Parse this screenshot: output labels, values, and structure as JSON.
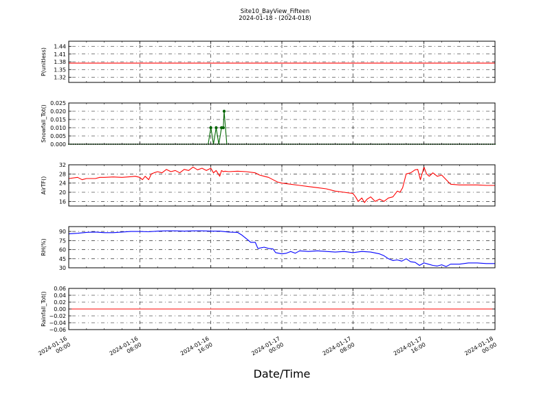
{
  "title": "Site10_BayView_Fifteen",
  "subtitle": "2024-01-18 - (2024-018)",
  "xlabel": "Date/Time",
  "x_ticks": [
    {
      "pos": 0,
      "line1": "2024-01-16",
      "line2": "00:00"
    },
    {
      "pos": 8,
      "line1": "2024-01-16",
      "line2": "08:00"
    },
    {
      "pos": 16,
      "line1": "2024-01-16",
      "line2": "16:00"
    },
    {
      "pos": 24,
      "line1": "2024-01-17",
      "line2": "00:00"
    },
    {
      "pos": 32,
      "line1": "2024-01-17",
      "line2": "08:00"
    },
    {
      "pos": 40,
      "line1": "2024-01-17",
      "line2": "16:00"
    },
    {
      "pos": 48,
      "line1": "2024-01-18",
      "line2": "00:00"
    }
  ],
  "colors": {
    "pressure": "#ff0000",
    "snowfall": "#006400",
    "airtf": "#ff0000",
    "rh": "#0000ff",
    "rainfall": "#ff0000",
    "grid": "#000000"
  },
  "chart_data": [
    {
      "type": "line",
      "ylabel": "P(unitless)",
      "ylim": [
        1.3,
        1.46
      ],
      "yticks": [
        "1.44",
        "1.41",
        "1.38",
        "1.35",
        "1.32"
      ],
      "ytick_values": [
        1.44,
        1.41,
        1.38,
        1.35,
        1.32
      ],
      "grid": true,
      "series": [
        {
          "x": [
            0,
            48
          ],
          "y": [
            1.375,
            1.375
          ]
        }
      ]
    },
    {
      "type": "line",
      "ylabel": "Snowfall_Tot()",
      "ylim": [
        0.0,
        0.025
      ],
      "yticks": [
        "0.025",
        "0.020",
        "0.015",
        "0.010",
        "0.005",
        "0.000"
      ],
      "ytick_values": [
        0.025,
        0.02,
        0.015,
        0.01,
        0.005,
        0.0
      ],
      "grid": true,
      "markers": true,
      "series": [
        {
          "x": [
            0,
            15.7,
            16.0,
            16.3,
            16.6,
            16.9,
            17.2,
            17.4,
            17.5,
            17.8,
            48
          ],
          "y": [
            0.0,
            0.0,
            0.01,
            0.0,
            0.01,
            0.0,
            0.01,
            0.01,
            0.02,
            0.0,
            0.0
          ]
        }
      ]
    },
    {
      "type": "line",
      "ylabel": "AirTF()",
      "ylim": [
        14,
        32
      ],
      "yticks": [
        "32",
        "28",
        "24",
        "20",
        "16"
      ],
      "ytick_values": [
        32,
        28,
        24,
        20,
        16
      ],
      "grid": true,
      "series": [
        {
          "x": [
            0,
            1,
            1.5,
            2,
            3,
            3.5,
            4,
            5,
            6,
            7,
            7.5,
            8,
            8.3,
            8.6,
            9,
            9.3,
            9.6,
            10,
            10.5,
            11,
            11.5,
            12,
            12.5,
            13,
            13.5,
            14,
            14.5,
            15,
            15.5,
            16,
            16.3,
            16.6,
            17,
            17.2,
            17.4,
            17.6,
            18,
            19,
            20,
            21,
            21.5,
            22,
            22.5,
            23,
            23.5,
            24,
            25,
            26,
            27,
            28,
            29,
            30,
            31,
            32,
            32.3,
            32.6,
            33,
            33.3,
            33.6,
            34,
            34.5,
            35,
            35.5,
            36,
            36.5,
            37,
            37.3,
            37.6,
            38,
            38.5,
            39,
            39.3,
            39.6,
            40,
            40.3,
            40.6,
            41,
            41.5,
            42,
            42.5,
            43,
            44,
            45,
            46,
            47,
            48
          ],
          "y": [
            26,
            26.5,
            25.5,
            26,
            26,
            26.5,
            26.5,
            26.7,
            26.5,
            26.8,
            27,
            26.5,
            25.5,
            27,
            25.5,
            28,
            28.5,
            29,
            28.5,
            30,
            29,
            29.5,
            28.5,
            30,
            29.5,
            31,
            29.8,
            30.5,
            29.5,
            30.5,
            28.5,
            29.5,
            27,
            29.5,
            29,
            29.2,
            29,
            29.2,
            29,
            28.5,
            27.5,
            27,
            26.5,
            25.5,
            24.5,
            24,
            23.5,
            23,
            22.5,
            22,
            21.5,
            20.5,
            20,
            19.5,
            18,
            16,
            17.5,
            15.5,
            17,
            18,
            16,
            17,
            16,
            17.5,
            18,
            20.5,
            20,
            22,
            28,
            28.5,
            29.8,
            30,
            25.5,
            31,
            28,
            27,
            28.5,
            27,
            27.5,
            25.5,
            23.5,
            23.2,
            23.2,
            23.2,
            23,
            23
          ]
        }
      ]
    },
    {
      "type": "line",
      "ylabel": "RH(%)",
      "ylim": [
        30,
        98
      ],
      "yticks": [
        "90",
        "75",
        "60",
        "45",
        "30"
      ],
      "ytick_values": [
        90,
        75,
        60,
        45,
        30
      ],
      "grid": true,
      "series": [
        {
          "x": [
            0,
            1,
            2,
            3,
            4,
            5,
            6,
            7,
            8,
            9,
            10,
            11,
            12,
            13,
            14,
            15,
            16,
            17,
            18,
            19,
            19.5,
            20,
            20.5,
            21,
            21.3,
            22,
            22.5,
            23,
            23.3,
            24,
            24.5,
            25,
            25.5,
            26,
            27,
            28,
            29,
            30,
            31,
            32,
            33,
            34,
            35,
            35.5,
            36,
            36.5,
            37,
            37.5,
            38,
            38.5,
            39,
            39.5,
            40,
            40.5,
            41,
            41.5,
            42,
            42.5,
            43,
            44,
            45,
            46,
            47,
            48
          ],
          "y": [
            86,
            87,
            88.5,
            89,
            88,
            88,
            89,
            90,
            90,
            89.5,
            90.5,
            91,
            91,
            90.5,
            91,
            91,
            90.5,
            90.5,
            89,
            88.5,
            84,
            78,
            72,
            72,
            62,
            64,
            62,
            61,
            55,
            53,
            54,
            57,
            54,
            58,
            57,
            58,
            57,
            56,
            57,
            55,
            57,
            56,
            53,
            50,
            45,
            42,
            43,
            41,
            45,
            40,
            39,
            34,
            38,
            36,
            34,
            33,
            35,
            32,
            36,
            36,
            38,
            38,
            37,
            37
          ]
        }
      ]
    },
    {
      "type": "line",
      "ylabel": "Rainfall_Tot()",
      "ylim": [
        -0.06,
        0.06
      ],
      "yticks": [
        "0.06",
        "0.04",
        "0.02",
        "0.00",
        "−0.02",
        "−0.04",
        "−0.06"
      ],
      "ytick_values": [
        0.06,
        0.04,
        0.02,
        0.0,
        -0.02,
        -0.04,
        -0.06
      ],
      "grid": true,
      "series": [
        {
          "x": [
            0,
            48
          ],
          "y": [
            0.0,
            0.0
          ]
        }
      ]
    }
  ]
}
